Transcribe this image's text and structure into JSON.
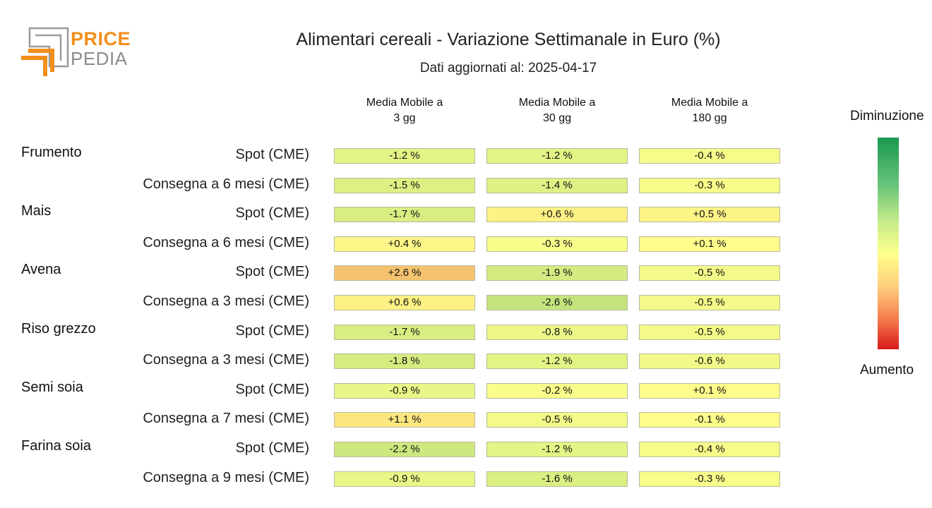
{
  "logo": {
    "word1": "PRICE",
    "word2": "PEDIA"
  },
  "title": "Alimentari cereali - Variazione Settimanale in Euro (%)",
  "subtitle": "Dati aggiornati al: 2025-04-17",
  "legend": {
    "top": "Diminuzione",
    "bottom": "Aumento"
  },
  "chart_data": {
    "type": "heatmap",
    "title": "Alimentari cereali - Variazione Settimanale in Euro (%)",
    "columns": [
      "Media Mobile a\n3 gg",
      "Media Mobile a\n30 gg",
      "Media Mobile a\n180 gg"
    ],
    "unit": "%",
    "colorscale": {
      "negative": "#1a9850",
      "zero": "#ffff8c",
      "positive": "#d7191c"
    },
    "rows": [
      {
        "group": "Frumento",
        "label": "Spot (CME)",
        "values": [
          -1.2,
          -1.2,
          -0.4
        ],
        "text": [
          "-1.2 %",
          "-1.2 %",
          "-0.4 %"
        ]
      },
      {
        "group": "",
        "label": "Consegna a 6 mesi (CME)",
        "values": [
          -1.5,
          -1.4,
          -0.3
        ],
        "text": [
          "-1.5 %",
          "-1.4 %",
          "-0.3 %"
        ]
      },
      {
        "group": "Mais",
        "label": "Spot (CME)",
        "values": [
          -1.7,
          0.6,
          0.5
        ],
        "text": [
          "-1.7 %",
          "+0.6 %",
          "+0.5 %"
        ]
      },
      {
        "group": "",
        "label": "Consegna a 6 mesi (CME)",
        "values": [
          0.4,
          -0.3,
          0.1
        ],
        "text": [
          "+0.4 %",
          "-0.3 %",
          "+0.1 %"
        ]
      },
      {
        "group": "Avena",
        "label": "Spot (CME)",
        "values": [
          2.6,
          -1.9,
          -0.5
        ],
        "text": [
          "+2.6 %",
          "-1.9 %",
          "-0.5 %"
        ]
      },
      {
        "group": "",
        "label": "Consegna a 3 mesi (CME)",
        "values": [
          0.6,
          -2.6,
          -0.5
        ],
        "text": [
          "+0.6 %",
          "-2.6 %",
          "-0.5 %"
        ]
      },
      {
        "group": "Riso grezzo",
        "label": "Spot (CME)",
        "values": [
          -1.7,
          -0.8,
          -0.5
        ],
        "text": [
          "-1.7 %",
          "-0.8 %",
          "-0.5 %"
        ]
      },
      {
        "group": "",
        "label": "Consegna a 3 mesi (CME)",
        "values": [
          -1.8,
          -1.2,
          -0.6
        ],
        "text": [
          "-1.8 %",
          "-1.2 %",
          "-0.6 %"
        ]
      },
      {
        "group": "Semi soia",
        "label": "Spot (CME)",
        "values": [
          -0.9,
          -0.2,
          0.1
        ],
        "text": [
          "-0.9 %",
          "-0.2 %",
          "+0.1 %"
        ]
      },
      {
        "group": "",
        "label": "Consegna a 7 mesi (CME)",
        "values": [
          1.1,
          -0.5,
          -0.1
        ],
        "text": [
          "+1.1 %",
          "-0.5 %",
          "-0.1 %"
        ]
      },
      {
        "group": "Farina soia",
        "label": "Spot (CME)",
        "values": [
          -2.2,
          -1.2,
          -0.4
        ],
        "text": [
          "-2.2 %",
          "-1.2 %",
          "-0.4 %"
        ]
      },
      {
        "group": "",
        "label": "Consegna a 9 mesi (CME)",
        "values": [
          -0.9,
          -1.6,
          -0.3
        ],
        "text": [
          "-0.9 %",
          "-1.6 %",
          "-0.3 %"
        ]
      }
    ]
  }
}
